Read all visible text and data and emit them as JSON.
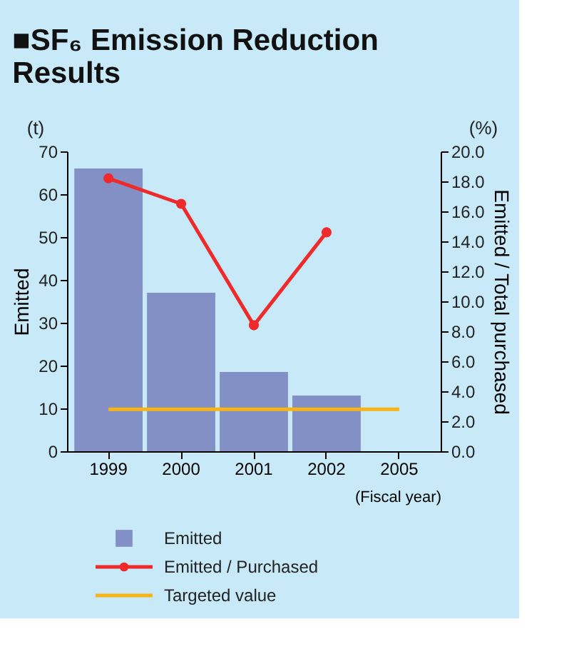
{
  "chart_data": {
    "type": "bar",
    "title": "■SF₆ Emission Reduction Results",
    "categories": [
      "1999",
      "2000",
      "2001",
      "2002",
      "2005"
    ],
    "xlabel": "(Fiscal year)",
    "ylabel": "Emitted",
    "y2label": "Emitted / Total purchased",
    "annotations": [
      "(t)",
      "(%)"
    ],
    "series": [
      {
        "name": "Emitted",
        "color": "#8290c6",
        "values": [
          66,
          37,
          18.5,
          13,
          null
        ]
      },
      {
        "name": "Emitted / Purchased",
        "type": "line",
        "axis": "y2",
        "marker": "circle",
        "color": "#ee2a2a",
        "values": [
          18.2,
          16.5,
          8.4,
          14.6,
          null
        ]
      },
      {
        "name": "Targeted value",
        "type": "line",
        "marker": "none",
        "color": "#f8b417",
        "values": [
          9.8,
          9.8,
          9.8,
          9.8,
          9.8
        ]
      }
    ],
    "ylim": [
      0,
      70
    ],
    "yticks": [
      0,
      10,
      20,
      30,
      40,
      50,
      60,
      70
    ],
    "y2lim": [
      0,
      20
    ],
    "y2ticks": [
      {
        "value": 0,
        "label": "0.0"
      },
      {
        "value": 2,
        "label": "2.0"
      },
      {
        "value": 4,
        "label": "4.0"
      },
      {
        "value": 6,
        "label": "6.0"
      },
      {
        "value": 8,
        "label": "8.0"
      },
      {
        "value": 10,
        "label": "10.0"
      },
      {
        "value": 12,
        "label": "12.0"
      },
      {
        "value": 14,
        "label": "14.0"
      },
      {
        "value": 16,
        "label": "16.0"
      },
      {
        "value": 18,
        "label": "18.0"
      },
      {
        "value": 20,
        "label": "20.0"
      }
    ],
    "grid": false,
    "legend": "bottom",
    "line_style": "solid"
  }
}
